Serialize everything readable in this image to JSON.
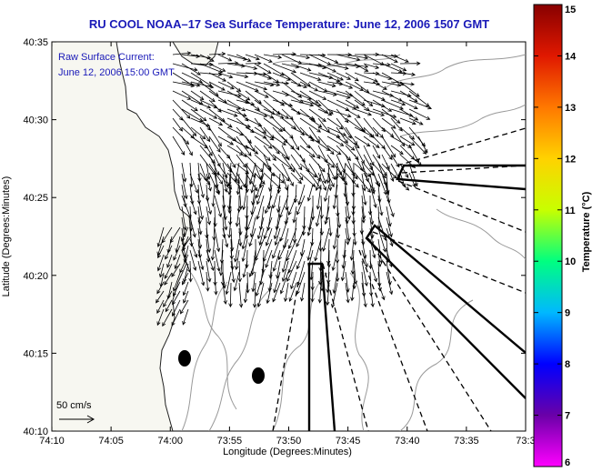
{
  "title": "RU COOL  NOAA–17  Sea Surface Temperature:  June 12, 2006 1507 GMT",
  "inset": {
    "line1": "Raw Surface Current:",
    "line2": "June 12, 2006 15:00 GMT"
  },
  "x_axis": {
    "label": "Longitude (Degrees:Minutes)",
    "ticks": [
      "74:10",
      "74:05",
      "74:00",
      "73:55",
      "73:50",
      "73:45",
      "73:40",
      "73:35",
      "73:3"
    ]
  },
  "y_axis": {
    "label": "Latitude (Degrees:Minutes)",
    "ticks": [
      "40:35",
      "40:30",
      "40:25",
      "40:20",
      "40:15",
      "40:10"
    ]
  },
  "scale": {
    "label": "50 cm/s"
  },
  "colorbar": {
    "label": "Temperature (°C)",
    "ticks": [
      "15",
      "14",
      "13",
      "12",
      "11",
      "10",
      "9",
      "8",
      "7",
      "6"
    ],
    "colors": [
      "#ff00ff",
      "#6a00a8",
      "#0000ff",
      "#00b8ff",
      "#00ff80",
      "#c8ff00",
      "#ffd200",
      "#ff7800",
      "#e01800",
      "#880000"
    ]
  },
  "colors": {
    "title": "#1a1ab8",
    "inset": "#1a1ab8",
    "land": "#f7f7f1",
    "coast": "#222222",
    "contour": "#999999",
    "arrows": "#000000"
  }
}
